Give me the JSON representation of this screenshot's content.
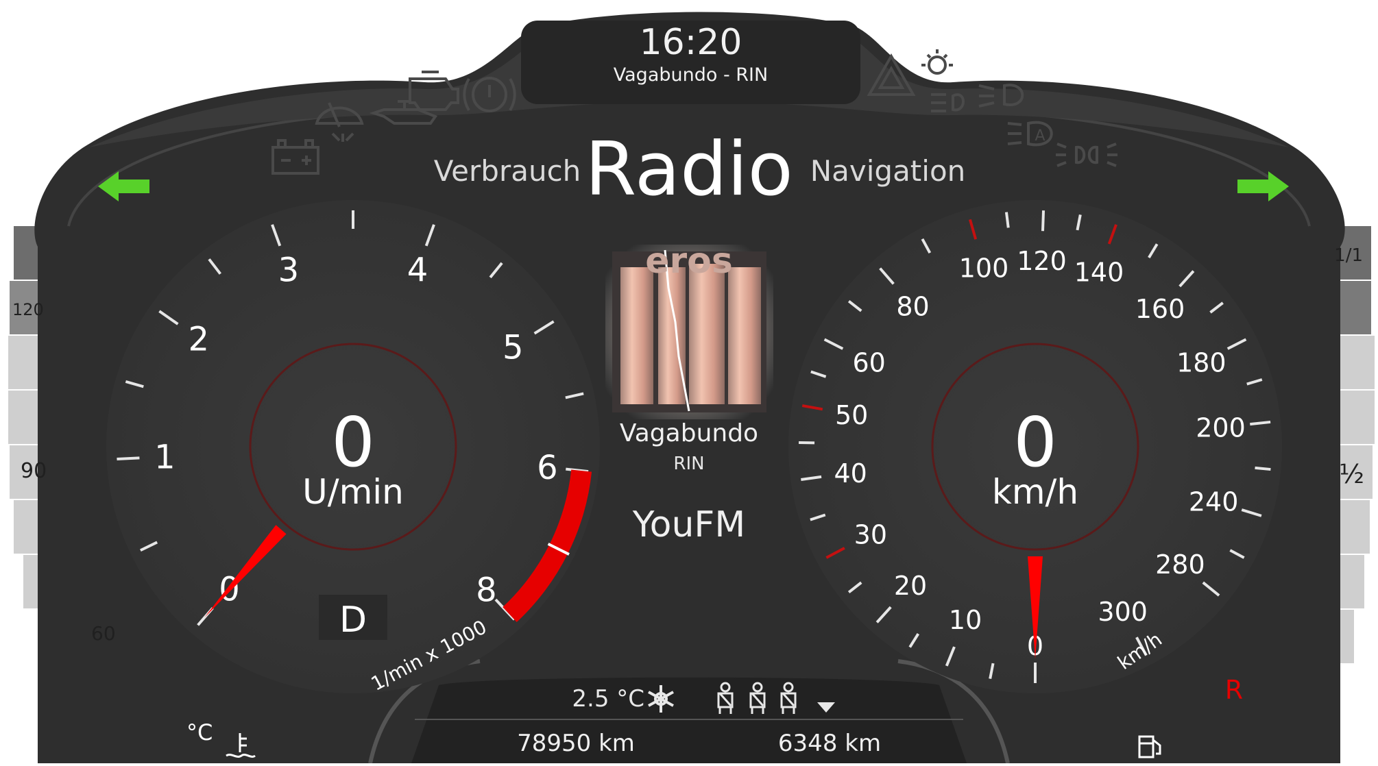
{
  "header": {
    "time": "16:20",
    "now_playing": "Vagabundo - RIN"
  },
  "tabs": {
    "left": "Verbrauch",
    "active": "Radio",
    "right": "Navigation"
  },
  "tachometer": {
    "value": "0",
    "unit": "U/min",
    "needle_value": 0,
    "max": 8,
    "labels": [
      "0",
      "1",
      "2",
      "3",
      "4",
      "5",
      "6",
      "8"
    ],
    "scale_caption": "1/min x 1000",
    "redline_from": 6,
    "gear": "D"
  },
  "speedometer": {
    "value": "0",
    "unit": "km/h",
    "needle_value": 0,
    "labels": [
      "0",
      "10",
      "20",
      "30",
      "40",
      "50",
      "60",
      "80",
      "100",
      "120",
      "140",
      "160",
      "180",
      "200",
      "240",
      "280",
      "300"
    ],
    "unit_caption": "km/h",
    "red_marks": [
      30,
      50,
      100,
      140
    ]
  },
  "media": {
    "album_art_word": "eros",
    "track": "Vagabundo",
    "artist": "RIN",
    "station": "YouFM"
  },
  "status": {
    "outside_temp": "2.5 °C",
    "odometer": "78950 km",
    "trip": "6348 km"
  },
  "coolant_gauge": {
    "labels": [
      "120",
      "90",
      "60"
    ],
    "unit": "°C",
    "level": 0.35
  },
  "fuel_gauge": {
    "labels": [
      "1/1",
      "½"
    ],
    "reserve_marker": "R",
    "level": 0.55
  },
  "colors": {
    "turn_signal": "#58d12a",
    "needle": "#ff0000",
    "redline": "#e60000",
    "panel": "#303030",
    "dial_face": "#363636",
    "warning_icons_inactive": "#3c3c3c"
  },
  "indicator_icons": [
    "turn-left-icon",
    "turn-right-icon",
    "battery-icon",
    "wiper-fluid-icon",
    "engine-check-icon",
    "oil-pressure-icon",
    "brake-warning-icon",
    "hazard-icon",
    "light-sensor-icon",
    "high-beam-icon",
    "fog-light-icon",
    "auto-headlight-icon",
    "position-light-icon",
    "snowflake-icon",
    "seatbelt-icon",
    "coolant-temp-icon",
    "fuel-pump-icon"
  ]
}
